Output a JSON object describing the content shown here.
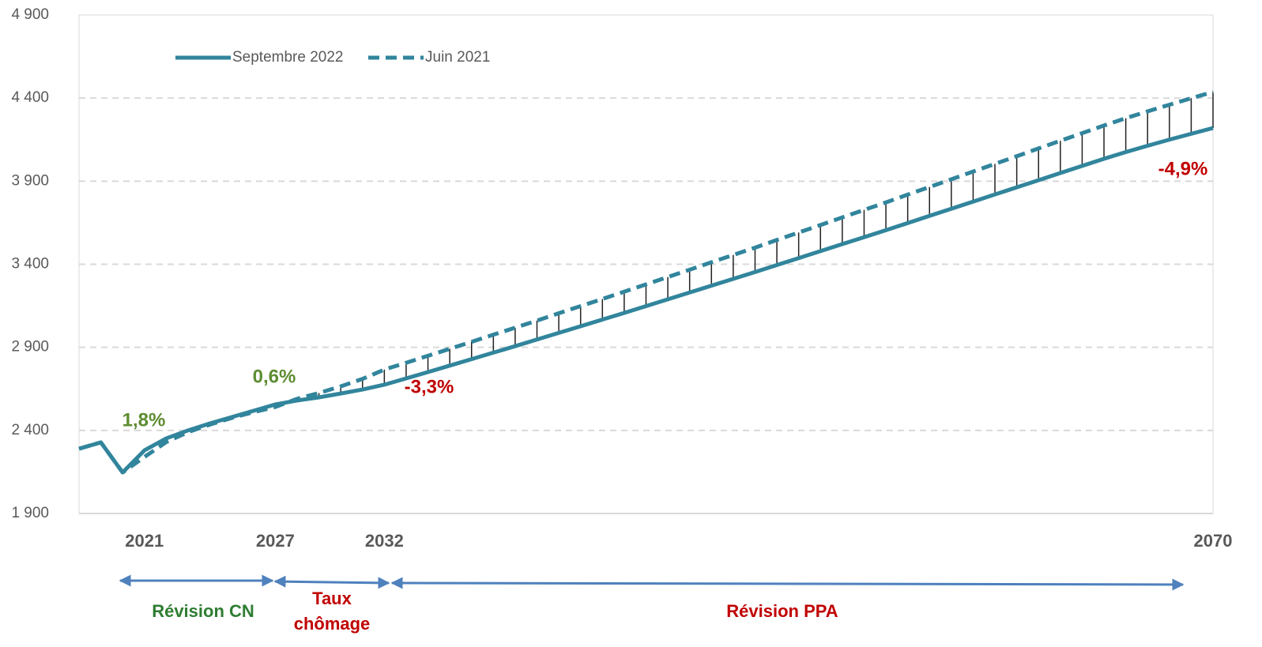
{
  "chart_data": {
    "type": "line",
    "x": [
      2018,
      2019,
      2020,
      2021,
      2022,
      2023,
      2024,
      2025,
      2026,
      2027,
      2028,
      2029,
      2030,
      2031,
      2032,
      2033,
      2034,
      2035,
      2036,
      2037,
      2038,
      2039,
      2040,
      2041,
      2042,
      2043,
      2044,
      2045,
      2046,
      2047,
      2048,
      2049,
      2050,
      2051,
      2052,
      2053,
      2054,
      2055,
      2056,
      2057,
      2058,
      2059,
      2060,
      2061,
      2062,
      2063,
      2064,
      2065,
      2066,
      2067,
      2068,
      2069,
      2070
    ],
    "series": [
      {
        "name": "Septembre 2022",
        "color": "#31859c",
        "dash": false,
        "values": [
          2290,
          2328,
          2147,
          2280,
          2352,
          2400,
          2442,
          2480,
          2518,
          2556,
          2580,
          2599,
          2622,
          2646,
          2675,
          2713,
          2751,
          2790,
          2829,
          2868,
          2907,
          2947,
          2987,
          3027,
          3067,
          3107,
          3148,
          3189,
          3230,
          3271,
          3312,
          3353,
          3395,
          3437,
          3479,
          3521,
          3563,
          3605,
          3648,
          3691,
          3734,
          3777,
          3820,
          3863,
          3906,
          3949,
          3992,
          4035,
          4075,
          4113,
          4150,
          4185,
          4220
        ]
      },
      {
        "name": "Juin 2021",
        "color": "#31859c",
        "dash": true,
        "values": [
          2290,
          2328,
          2147,
          2240,
          2330,
          2390,
          2435,
          2475,
          2510,
          2541,
          2590,
          2625,
          2665,
          2710,
          2766,
          2807,
          2849,
          2891,
          2933,
          2976,
          3018,
          3061,
          3105,
          3148,
          3191,
          3235,
          3279,
          3323,
          3367,
          3412,
          3456,
          3500,
          3546,
          3591,
          3636,
          3682,
          3727,
          3772,
          3819,
          3865,
          3911,
          3958,
          4004,
          4050,
          4097,
          4143,
          4189,
          4235,
          4279,
          4320,
          4360,
          4399,
          4437
        ]
      }
    ],
    "xlim": [
      2018,
      2070
    ],
    "xticks": [
      2021,
      2027,
      2032,
      2070
    ],
    "ylim": [
      1900,
      4900
    ],
    "yticks": [
      {
        "value": 1900,
        "label": "1 900"
      },
      {
        "value": 2400,
        "label": "2 400"
      },
      {
        "value": 2900,
        "label": "2 900"
      },
      {
        "value": 3400,
        "label": "3 400"
      },
      {
        "value": 3900,
        "label": "3 900"
      },
      {
        "value": 4400,
        "label": "4 400"
      },
      {
        "value": 4900,
        "label": "4 900"
      }
    ],
    "grid": true,
    "legend": "upper-left",
    "annotations": [
      {
        "text": "1,8%",
        "color": "#5e8c31"
      },
      {
        "text": "0,6%",
        "color": "#5e8c31"
      },
      {
        "text": "-3,3%",
        "color": "#c00000"
      },
      {
        "text": "-4,9%",
        "color": "#c00000"
      }
    ],
    "periods": [
      {
        "label": [
          "Révision CN"
        ],
        "color": "#2e7d32"
      },
      {
        "label": [
          "Taux",
          "chômage"
        ],
        "color": "#c00000"
      },
      {
        "label": [
          "Révision PPA"
        ],
        "color": "#c00000"
      }
    ]
  }
}
